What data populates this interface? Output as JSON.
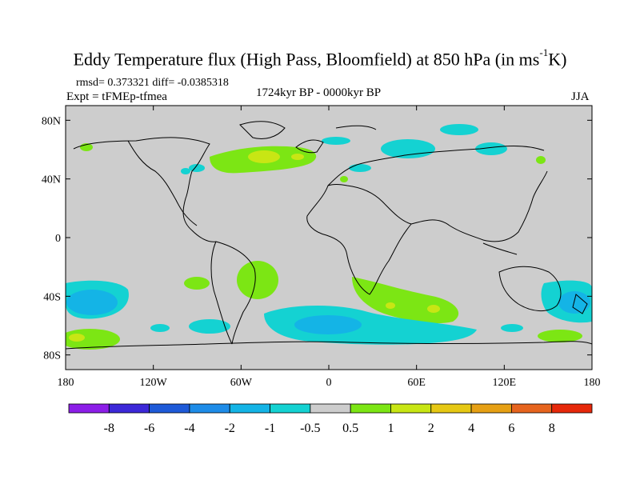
{
  "title_main": "Eddy Temperature flux (High Pass, Bloomfield) at 850 hPa (in ms",
  "title_sup": "-1",
  "title_end": "K)",
  "stats": "rmsd= 0.373321 diff= -0.0385318",
  "expt": "Expt = tFMEp-tfmea",
  "period": "1724kyr BP - 0000kyr BP",
  "season": "JJA",
  "lat_ticks": [
    "80N",
    "40N",
    "0",
    "40S",
    "80S"
  ],
  "lon_ticks": [
    "180",
    "120W",
    "60W",
    "0",
    "60E",
    "120E",
    "180"
  ],
  "colorbar": {
    "labels": [
      "-8",
      "-6",
      "-4",
      "-2",
      "-1",
      "-0.5",
      "0.5",
      "1",
      "2",
      "4",
      "6",
      "8"
    ],
    "colors": [
      "#8c1ee8",
      "#3c28d8",
      "#1e5ad8",
      "#1e8ce8",
      "#14b4e6",
      "#14d2d2",
      "#cdcdcd",
      "#7ce614",
      "#c8e614",
      "#e6c814",
      "#e6a014",
      "#e6641e",
      "#e6280a"
    ]
  },
  "colors": {
    "ocean_land": "#cdcdcd",
    "coast": "#000000"
  }
}
